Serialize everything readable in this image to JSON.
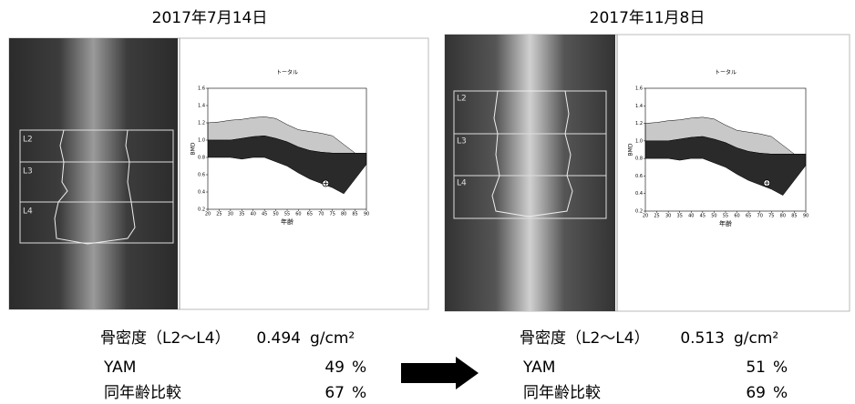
{
  "panels": [
    {
      "date": "2017年7月14日",
      "scan_labels": [
        "L2",
        "L3",
        "L4"
      ],
      "chart_data": {
        "type": "area",
        "title": "トータル",
        "ylabel": "BMD",
        "xlabel": "年齢",
        "x": [
          20,
          25,
          30,
          35,
          40,
          45,
          50,
          55,
          60,
          65,
          70,
          75,
          80,
          85,
          90
        ],
        "upper": [
          1.2,
          1.21,
          1.23,
          1.24,
          1.26,
          1.27,
          1.25,
          1.18,
          1.12,
          1.1,
          1.08,
          1.05,
          0.95,
          0.85,
          0.85
        ],
        "middle": [
          1.0,
          1.0,
          1.0,
          1.02,
          1.04,
          1.05,
          1.02,
          0.98,
          0.92,
          0.88,
          0.86,
          0.85,
          0.85,
          0.85,
          0.85
        ],
        "lower": [
          0.8,
          0.8,
          0.8,
          0.78,
          0.8,
          0.8,
          0.75,
          0.7,
          0.62,
          0.55,
          0.5,
          0.45,
          0.38,
          0.55,
          0.72
        ],
        "upper_color": "#c8c8c8",
        "lower_color": "#2a2a2a",
        "point": {
          "x": 72,
          "y": 0.5
        },
        "xlim": [
          20,
          90
        ],
        "ylim": [
          0.2,
          1.6
        ],
        "xticks": [
          20,
          25,
          30,
          35,
          40,
          45,
          50,
          55,
          60,
          65,
          70,
          75,
          80,
          85,
          90
        ],
        "yticks": [
          0.2,
          0.4,
          0.6,
          0.8,
          {
            "value": 1,
            "label": "1.0"
          },
          1.2,
          1.4,
          1.6
        ]
      },
      "results": [
        {
          "label": "骨密度（L2〜L4）",
          "value": 0.494,
          "unit": "g/cm²"
        },
        {
          "label": "YAM",
          "value": 49,
          "unit": "%"
        },
        {
          "label": "同年齢比較",
          "value": 67,
          "unit": "%"
        }
      ]
    },
    {
      "date": "2017年11月8日",
      "scan_labels": [
        "L2",
        "L3",
        "L4"
      ],
      "chart_data": {
        "type": "area",
        "title": "トータル",
        "ylabel": "BMD",
        "xlabel": "年齢",
        "x": [
          20,
          25,
          30,
          35,
          40,
          45,
          50,
          55,
          60,
          65,
          70,
          75,
          80,
          85,
          90
        ],
        "upper": [
          1.2,
          1.21,
          1.23,
          1.24,
          1.26,
          1.27,
          1.25,
          1.18,
          1.12,
          1.1,
          1.08,
          1.05,
          0.95,
          0.85,
          0.85
        ],
        "middle": [
          1.0,
          1.0,
          1.0,
          1.02,
          1.04,
          1.05,
          1.02,
          0.98,
          0.92,
          0.88,
          0.86,
          0.85,
          0.85,
          0.85,
          0.85
        ],
        "lower": [
          0.8,
          0.8,
          0.8,
          0.78,
          0.8,
          0.8,
          0.75,
          0.7,
          0.62,
          0.55,
          0.5,
          0.45,
          0.38,
          0.55,
          0.72
        ],
        "upper_color": "#c8c8c8",
        "lower_color": "#2a2a2a",
        "point": {
          "x": 73,
          "y": 0.52
        },
        "xlim": [
          20,
          90
        ],
        "ylim": [
          0.2,
          1.6
        ],
        "xticks": [
          20,
          25,
          30,
          35,
          40,
          45,
          50,
          55,
          60,
          65,
          70,
          75,
          80,
          85,
          90
        ],
        "yticks": [
          0.2,
          0.4,
          0.6,
          0.8,
          {
            "value": 1,
            "label": "1.0"
          },
          1.2,
          1.4,
          1.6
        ]
      },
      "results": [
        {
          "label": "骨密度（L2〜L4）",
          "value": 0.513,
          "unit": "g/cm²"
        },
        {
          "label": "YAM",
          "value": 51,
          "unit": "%"
        },
        {
          "label": "同年齢比較",
          "value": 69,
          "unit": "%"
        }
      ]
    }
  ]
}
